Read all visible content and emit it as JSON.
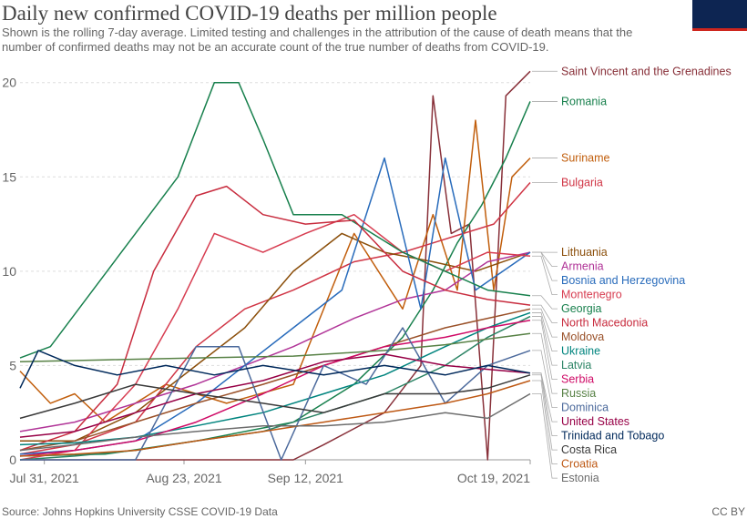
{
  "header": {
    "title": "Daily new confirmed COVID-19 deaths per million people",
    "subtitle": "Shown is the rolling 7-day average. Limited testing and challenges in the attribution of the cause of death means that the number of confirmed deaths may not be an accurate count of the true number of deaths from COVID-19."
  },
  "footer": {
    "source": "Source: Johns Hopkins University CSSE COVID-19 Data",
    "license": "CC BY"
  },
  "chart_data": {
    "type": "line",
    "x_ticks": [
      "Jul 31, 2021",
      "Aug 23, 2021",
      "Sep 12, 2021",
      "Oct 19, 2021"
    ],
    "y_ticks": [
      0,
      5,
      10,
      15,
      20
    ],
    "ylim": [
      0,
      21
    ],
    "xlim": [
      "Jul 27, 2021",
      "Oct 19, 2021"
    ],
    "grid": "horizontal dashed",
    "legend": "right, labels at line ends",
    "series": [
      {
        "name": "Saint Vincent and the Grenadines",
        "color": "#883039",
        "points": [
          [
            "Jul 27",
            0
          ],
          [
            "Aug 20",
            0
          ],
          [
            "Sep 10",
            0
          ],
          [
            "Sep 15",
            0.8
          ],
          [
            "Sep 25",
            2.5
          ],
          [
            "Oct 1",
            5
          ],
          [
            "Oct 3",
            19.3
          ],
          [
            "Oct 6",
            12
          ],
          [
            "Oct 9",
            12.5
          ],
          [
            "Oct 12",
            0
          ],
          [
            "Oct 15",
            19.3
          ],
          [
            "Oct 19",
            20.6
          ]
        ]
      },
      {
        "name": "Romania",
        "color": "#18804d",
        "points": [
          [
            "Jul 27",
            0.2
          ],
          [
            "Aug 10",
            0.3
          ],
          [
            "Aug 25",
            1
          ],
          [
            "Sep 10",
            2
          ],
          [
            "Sep 20",
            4
          ],
          [
            "Sep 28",
            6.5
          ],
          [
            "Oct 3",
            9
          ],
          [
            "Oct 7",
            11.5
          ],
          [
            "Oct 11",
            13.5
          ],
          [
            "Oct 15",
            16
          ],
          [
            "Oct 19",
            19
          ]
        ]
      },
      {
        "name": "Suriname",
        "color": "#c15e0c",
        "points": [
          [
            "Jul 27",
            4.7
          ],
          [
            "Aug 1",
            3
          ],
          [
            "Aug 5",
            3.5
          ],
          [
            "Aug 10",
            2
          ],
          [
            "Aug 20",
            4
          ],
          [
            "Aug 30",
            3
          ],
          [
            "Sep 10",
            4
          ],
          [
            "Sep 20",
            12
          ],
          [
            "Sep 28",
            8
          ],
          [
            "Oct 3",
            13
          ],
          [
            "Oct 7",
            9
          ],
          [
            "Oct 10",
            18
          ],
          [
            "Oct 13",
            9
          ],
          [
            "Oct 16",
            15
          ],
          [
            "Oct 19",
            16
          ]
        ]
      },
      {
        "name": "Bulgaria",
        "color": "#d03545",
        "points": [
          [
            "Jul 27",
            0.3
          ],
          [
            "Aug 5",
            0.8
          ],
          [
            "Aug 15",
            2
          ],
          [
            "Aug 25",
            6
          ],
          [
            "Sep 2",
            8
          ],
          [
            "Sep 10",
            9
          ],
          [
            "Sep 20",
            10.5
          ],
          [
            "Sep 28",
            11
          ],
          [
            "Oct 3",
            11.5
          ],
          [
            "Oct 8",
            12
          ],
          [
            "Oct 13",
            12.5
          ],
          [
            "Oct 19",
            14.7
          ]
        ]
      },
      {
        "name": "Lithuania",
        "color": "#8b4f0b",
        "points": [
          [
            "Jul 27",
            1
          ],
          [
            "Aug 5",
            1
          ],
          [
            "Aug 15",
            2.5
          ],
          [
            "Aug 25",
            5
          ],
          [
            "Sep 2",
            7
          ],
          [
            "Sep 10",
            10
          ],
          [
            "Sep 18",
            12
          ],
          [
            "Sep 25",
            11
          ],
          [
            "Oct 3",
            10.5
          ],
          [
            "Oct 10",
            10
          ],
          [
            "Oct 19",
            11
          ]
        ]
      },
      {
        "name": "Armenia",
        "color": "#b13598",
        "points": [
          [
            "Jul 27",
            1.5
          ],
          [
            "Aug 5",
            2
          ],
          [
            "Aug 15",
            3
          ],
          [
            "Aug 25",
            4
          ],
          [
            "Sep 2",
            5
          ],
          [
            "Sep 10",
            6
          ],
          [
            "Sep 20",
            7.5
          ],
          [
            "Sep 28",
            8.5
          ],
          [
            "Oct 5",
            9
          ],
          [
            "Oct 12",
            10.5
          ],
          [
            "Oct 19",
            11
          ]
        ]
      },
      {
        "name": "Bosnia and Herzegovina",
        "color": "#286bbb",
        "points": [
          [
            "Jul 27",
            0.3
          ],
          [
            "Aug 5",
            0.5
          ],
          [
            "Aug 15",
            1
          ],
          [
            "Aug 25",
            3
          ],
          [
            "Sep 2",
            5
          ],
          [
            "Sep 10",
            7
          ],
          [
            "Sep 18",
            9
          ],
          [
            "Sep 25",
            16
          ],
          [
            "Oct 1",
            8
          ],
          [
            "Oct 5",
            16
          ],
          [
            "Oct 10",
            9
          ],
          [
            "Oct 19",
            11
          ]
        ]
      },
      {
        "name": "Montenegro",
        "color": "#d73c50",
        "points": [
          [
            "Jul 27",
            0
          ],
          [
            "Aug 5",
            0.5
          ],
          [
            "Aug 15",
            4
          ],
          [
            "Aug 22",
            8
          ],
          [
            "Aug 28",
            12
          ],
          [
            "Sep 5",
            11
          ],
          [
            "Sep 12",
            12
          ],
          [
            "Sep 20",
            13
          ],
          [
            "Sep 28",
            11
          ],
          [
            "Oct 5",
            10
          ],
          [
            "Oct 12",
            11
          ],
          [
            "Oct 19",
            10.8
          ]
        ]
      },
      {
        "name": "Georgia",
        "color": "#18804d",
        "points": [
          [
            "Jul 27",
            5.4
          ],
          [
            "Aug 1",
            6
          ],
          [
            "Aug 8",
            9
          ],
          [
            "Aug 15",
            12
          ],
          [
            "Aug 22",
            15
          ],
          [
            "Aug 28",
            20
          ],
          [
            "Sep 1",
            20
          ],
          [
            "Sep 5",
            17
          ],
          [
            "Sep 10",
            13
          ],
          [
            "Sep 18",
            13
          ],
          [
            "Sep 28",
            11
          ],
          [
            "Oct 5",
            10
          ],
          [
            "Oct 12",
            9
          ],
          [
            "Oct 19",
            8.7
          ]
        ]
      },
      {
        "name": "North Macedonia",
        "color": "#c82c3e",
        "points": [
          [
            "Jul 27",
            0.5
          ],
          [
            "Aug 5",
            1.5
          ],
          [
            "Aug 12",
            4
          ],
          [
            "Aug 18",
            10
          ],
          [
            "Aug 25",
            14
          ],
          [
            "Aug 30",
            14.5
          ],
          [
            "Sep 5",
            13
          ],
          [
            "Sep 12",
            12.5
          ],
          [
            "Sep 20",
            12.7
          ],
          [
            "Sep 28",
            10
          ],
          [
            "Oct 5",
            9
          ],
          [
            "Oct 12",
            8.5
          ],
          [
            "Oct 19",
            8.2
          ]
        ]
      },
      {
        "name": "Moldova",
        "color": "#9a5129",
        "points": [
          [
            "Jul 27",
            0.5
          ],
          [
            "Aug 5",
            1
          ],
          [
            "Aug 15",
            2
          ],
          [
            "Aug 25",
            3
          ],
          [
            "Sep 5",
            4
          ],
          [
            "Sep 15",
            5
          ],
          [
            "Sep 25",
            6
          ],
          [
            "Oct 5",
            7
          ],
          [
            "Oct 12",
            7.5
          ],
          [
            "Oct 19",
            8
          ]
        ]
      },
      {
        "name": "Ukraine",
        "color": "#00847e",
        "points": [
          [
            "Jul 27",
            0.8
          ],
          [
            "Aug 5",
            0.9
          ],
          [
            "Aug 15",
            1.2
          ],
          [
            "Aug 25",
            1.8
          ],
          [
            "Sep 5",
            2.5
          ],
          [
            "Sep 15",
            3.5
          ],
          [
            "Sep 25",
            4.5
          ],
          [
            "Oct 5",
            6
          ],
          [
            "Oct 12",
            7
          ],
          [
            "Oct 19",
            7.8
          ]
        ]
      },
      {
        "name": "Latvia",
        "color": "#2c8465",
        "points": [
          [
            "Jul 27",
            0
          ],
          [
            "Aug 5",
            0.2
          ],
          [
            "Aug 15",
            0.5
          ],
          [
            "Aug 25",
            1
          ],
          [
            "Sep 5",
            1.5
          ],
          [
            "Sep 15",
            2.5
          ],
          [
            "Sep 25",
            3.5
          ],
          [
            "Oct 5",
            5
          ],
          [
            "Oct 12",
            6.5
          ],
          [
            "Oct 19",
            7.6
          ]
        ]
      },
      {
        "name": "Serbia",
        "color": "#cf0a66",
        "points": [
          [
            "Jul 27",
            0.2
          ],
          [
            "Aug 5",
            0.5
          ],
          [
            "Aug 15",
            1
          ],
          [
            "Aug 25",
            2
          ],
          [
            "Sep 5",
            3.5
          ],
          [
            "Sep 15",
            5
          ],
          [
            "Sep 25",
            6
          ],
          [
            "Oct 5",
            6.5
          ],
          [
            "Oct 12",
            7
          ],
          [
            "Oct 19",
            7.4
          ]
        ]
      },
      {
        "name": "Russia",
        "color": "#578145",
        "points": [
          [
            "Jul 27",
            5.2
          ],
          [
            "Aug 10",
            5.3
          ],
          [
            "Aug 25",
            5.4
          ],
          [
            "Sep 10",
            5.5
          ],
          [
            "Sep 25",
            5.8
          ],
          [
            "Oct 5",
            6.1
          ],
          [
            "Oct 12",
            6.4
          ],
          [
            "Oct 19",
            6.7
          ]
        ]
      },
      {
        "name": "Dominica",
        "color": "#4c6a9c",
        "points": [
          [
            "Jul 27",
            0
          ],
          [
            "Aug 15",
            0
          ],
          [
            "Aug 25",
            6
          ],
          [
            "Sep 1",
            6
          ],
          [
            "Sep 8",
            0
          ],
          [
            "Sep 15",
            5
          ],
          [
            "Sep 22",
            4
          ],
          [
            "Sep 28",
            7
          ],
          [
            "Oct 5",
            3
          ],
          [
            "Oct 12",
            5
          ],
          [
            "Oct 19",
            5.8
          ]
        ]
      },
      {
        "name": "United States",
        "color": "#970046",
        "points": [
          [
            "Jul 27",
            1.2
          ],
          [
            "Aug 5",
            1.5
          ],
          [
            "Aug 15",
            2.5
          ],
          [
            "Aug 25",
            3.5
          ],
          [
            "Sep 5",
            4.2
          ],
          [
            "Sep 15",
            5.2
          ],
          [
            "Sep 25",
            5.6
          ],
          [
            "Oct 5",
            5
          ],
          [
            "Oct 12",
            4.8
          ],
          [
            "Oct 19",
            4.6
          ]
        ]
      },
      {
        "name": "Trinidad and Tobago",
        "color": "#00295b",
        "points": [
          [
            "Jul 27",
            3.8
          ],
          [
            "Jul 30",
            5.8
          ],
          [
            "Aug 5",
            5
          ],
          [
            "Aug 12",
            4.5
          ],
          [
            "Aug 20",
            5
          ],
          [
            "Aug 28",
            4.5
          ],
          [
            "Sep 5",
            5
          ],
          [
            "Sep 15",
            4.5
          ],
          [
            "Sep 25",
            5
          ],
          [
            "Oct 5",
            4.5
          ],
          [
            "Oct 12",
            5
          ],
          [
            "Oct 19",
            4.6
          ]
        ]
      },
      {
        "name": "Costa Rica",
        "color": "#3a3a3a",
        "points": [
          [
            "Jul 27",
            2.2
          ],
          [
            "Aug 5",
            3
          ],
          [
            "Aug 15",
            4
          ],
          [
            "Aug 25",
            3.5
          ],
          [
            "Sep 5",
            3
          ],
          [
            "Sep 15",
            2.5
          ],
          [
            "Sep 25",
            3.5
          ],
          [
            "Oct 5",
            3.5
          ],
          [
            "Oct 12",
            3.8
          ],
          [
            "Oct 19",
            4.5
          ]
        ]
      },
      {
        "name": "Croatia",
        "color": "#be5915",
        "points": [
          [
            "Jul 27",
            0.2
          ],
          [
            "Aug 5",
            0.3
          ],
          [
            "Aug 15",
            0.5
          ],
          [
            "Aug 25",
            1
          ],
          [
            "Sep 5",
            1.5
          ],
          [
            "Sep 15",
            2
          ],
          [
            "Sep 25",
            2.5
          ],
          [
            "Oct 5",
            3
          ],
          [
            "Oct 12",
            3.5
          ],
          [
            "Oct 19",
            4.2
          ]
        ]
      },
      {
        "name": "Estonia",
        "color": "#6d6d6d",
        "points": [
          [
            "Jul 27",
            0.5
          ],
          [
            "Aug 5",
            0.8
          ],
          [
            "Aug 15",
            1.2
          ],
          [
            "Aug 25",
            1.5
          ],
          [
            "Sep 5",
            1.8
          ],
          [
            "Sep 15",
            1.8
          ],
          [
            "Sep 25",
            2
          ],
          [
            "Oct 5",
            2.5
          ],
          [
            "Oct 12",
            2.2
          ],
          [
            "Oct 19",
            3.5
          ]
        ]
      }
    ]
  }
}
